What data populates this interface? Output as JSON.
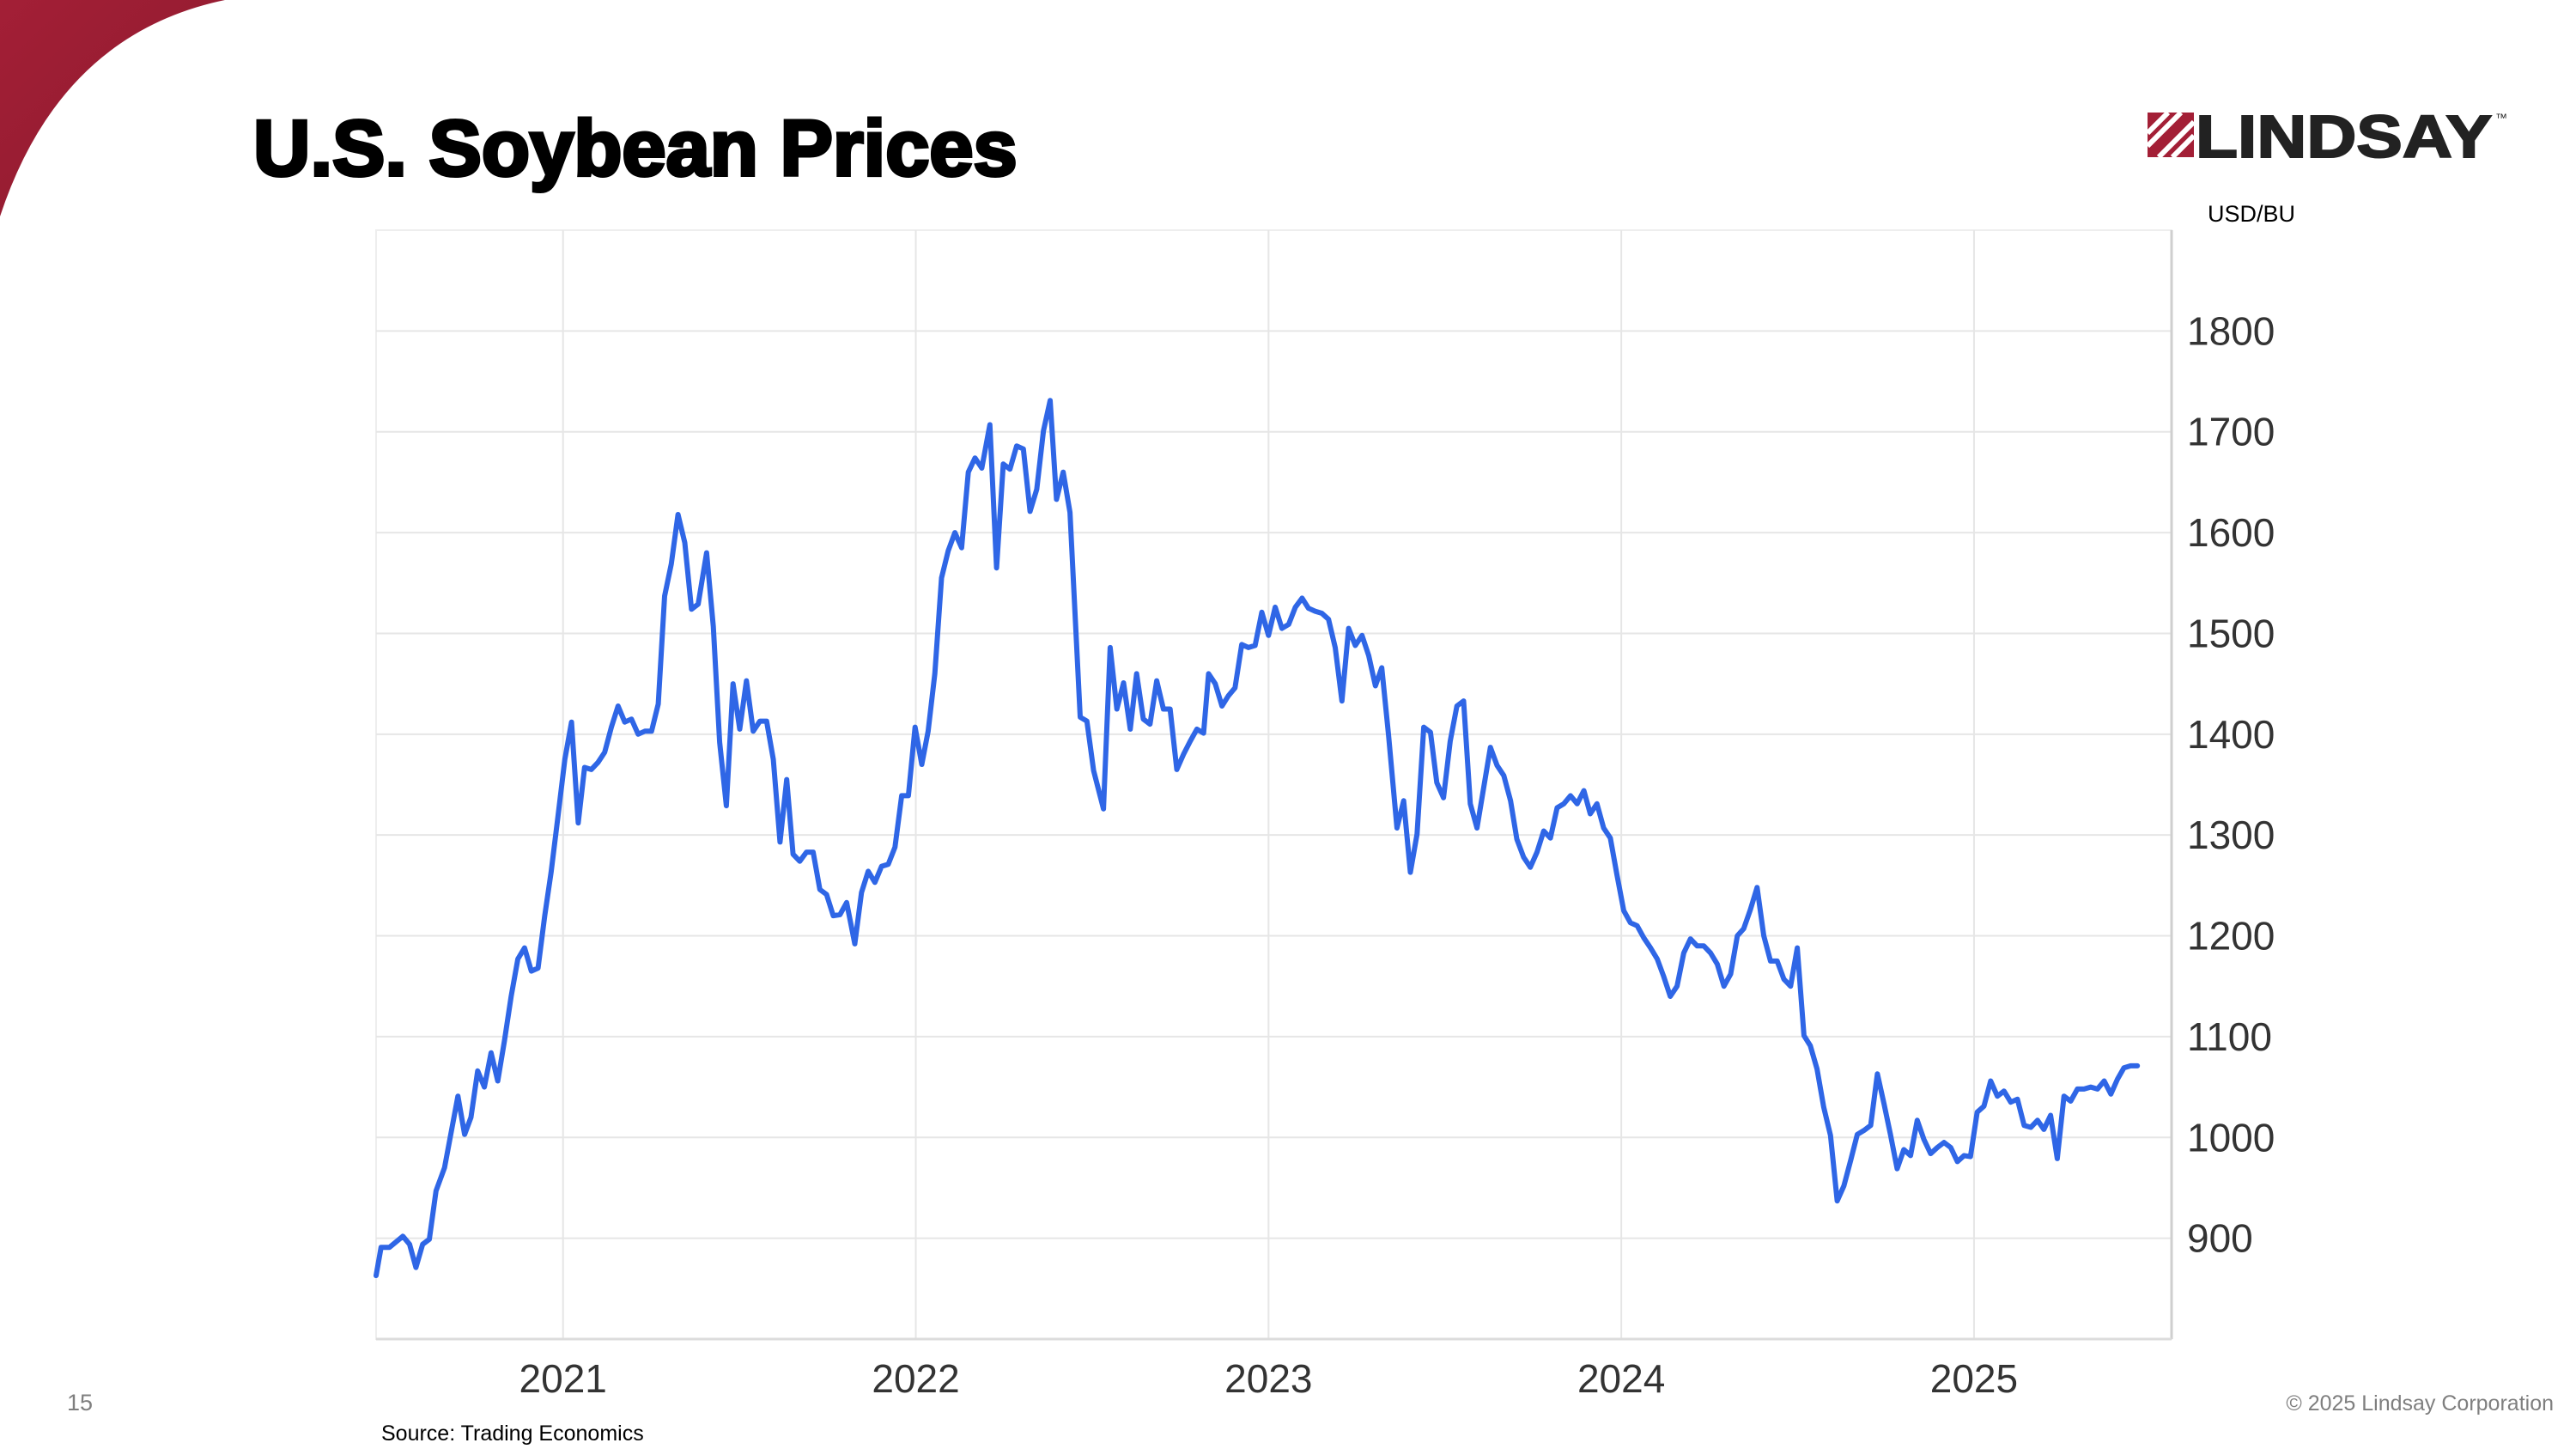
{
  "chart_data": {
    "type": "line",
    "title": "U.S. Soybean Prices",
    "y_label": "USD/BU",
    "source": "Source: Trading Economics",
    "color": "#2f66e6",
    "xlim": [
      2020.47,
      2025.56
    ],
    "xticks": [
      2021,
      2022,
      2023,
      2024,
      2025
    ],
    "ylim": [
      800,
      1900
    ],
    "yticks": [
      900,
      1000,
      1100,
      1200,
      1300,
      1400,
      1500,
      1600,
      1700,
      1800
    ],
    "grid": true,
    "x": [
      2020.47,
      2020.484,
      2020.508,
      2020.546,
      2020.565,
      2020.583,
      2020.602,
      2020.621,
      2020.64,
      2020.664,
      2020.702,
      2020.721,
      2020.739,
      2020.758,
      2020.777,
      2020.796,
      2020.815,
      2020.834,
      2020.853,
      2020.872,
      2020.891,
      2020.91,
      2020.929,
      2020.948,
      2020.966,
      2020.985,
      2021.005,
      2021.024,
      2021.043,
      2021.061,
      2021.08,
      2021.099,
      2021.118,
      2021.137,
      2021.156,
      2021.175,
      2021.194,
      2021.213,
      2021.232,
      2021.251,
      2021.27,
      2021.288,
      2021.307,
      2021.326,
      2021.345,
      2021.364,
      2021.383,
      2021.407,
      2021.426,
      2021.444,
      2021.463,
      2021.482,
      2021.501,
      2021.52,
      2021.539,
      2021.558,
      2021.577,
      2021.596,
      2021.615,
      2021.634,
      2021.652,
      2021.671,
      2021.69,
      2021.709,
      2021.728,
      2021.747,
      2021.766,
      2021.785,
      2021.804,
      2021.827,
      2021.846,
      2021.865,
      2021.884,
      2021.903,
      2021.922,
      2021.941,
      2021.96,
      2021.979,
      2021.998,
      2022.017,
      2022.035,
      2022.054,
      2022.073,
      2022.092,
      2022.111,
      2022.13,
      2022.149,
      2022.168,
      2022.187,
      2022.21,
      2022.229,
      2022.248,
      2022.267,
      2022.286,
      2022.305,
      2022.324,
      2022.343,
      2022.362,
      2022.381,
      2022.399,
      2022.418,
      2022.437,
      2022.466,
      2022.485,
      2022.504,
      2022.532,
      2022.551,
      2022.57,
      2022.589,
      2022.608,
      2022.626,
      2022.645,
      2022.664,
      2022.683,
      2022.702,
      2022.721,
      2022.74,
      2022.759,
      2022.778,
      2022.797,
      2022.816,
      2022.83,
      2022.849,
      2022.868,
      2022.886,
      2022.905,
      2022.924,
      2022.943,
      2022.962,
      2022.981,
      2023.0,
      2023.019,
      2023.038,
      2023.057,
      2023.076,
      2023.095,
      2023.113,
      2023.132,
      2023.151,
      2023.17,
      2023.189,
      2023.208,
      2023.227,
      2023.246,
      2023.265,
      2023.284,
      2023.303,
      2023.321,
      2023.34,
      2023.364,
      2023.383,
      2023.402,
      2023.421,
      2023.44,
      2023.459,
      2023.477,
      2023.496,
      2023.515,
      2023.534,
      2023.553,
      2023.572,
      2023.591,
      2023.61,
      2023.629,
      2023.648,
      2023.667,
      2023.686,
      2023.704,
      2023.723,
      2023.742,
      2023.761,
      2023.78,
      2023.799,
      2023.818,
      2023.837,
      2023.856,
      2023.875,
      2023.894,
      2023.912,
      2023.931,
      2023.95,
      2023.969,
      2023.988,
      2024.007,
      2024.026,
      2024.045,
      2024.064,
      2024.083,
      2024.102,
      2024.12,
      2024.139,
      2024.158,
      2024.177,
      2024.196,
      2024.215,
      2024.234,
      2024.253,
      2024.272,
      2024.291,
      2024.31,
      2024.329,
      2024.347,
      2024.366,
      2024.385,
      2024.404,
      2024.423,
      2024.442,
      2024.461,
      2024.48,
      2024.499,
      2024.518,
      2024.536,
      2024.555,
      2024.574,
      2024.593,
      2024.612,
      2024.631,
      2024.65,
      2024.669,
      2024.688,
      2024.707,
      2024.726,
      2024.745,
      2024.763,
      2024.782,
      2024.801,
      2024.82,
      2024.839,
      2024.858,
      2024.877,
      2024.896,
      2024.915,
      2024.934,
      2024.953,
      2024.972,
      2024.99,
      2025.009,
      2025.028,
      2025.047,
      2025.066,
      2025.085,
      2025.104,
      2025.123,
      2025.142,
      2025.161,
      2025.18,
      2025.198,
      2025.217,
      2025.236,
      2025.255,
      2025.274,
      2025.293,
      2025.312,
      2025.331,
      2025.35,
      2025.369,
      2025.388,
      2025.407,
      2025.425,
      2025.444,
      2025.463
    ],
    "values": [
      863,
      891,
      891,
      902,
      894,
      871,
      894,
      899,
      947,
      970,
      1041,
      1003,
      1020,
      1066,
      1050,
      1084,
      1056,
      1096,
      1140,
      1177,
      1188,
      1165,
      1168,
      1220,
      1263,
      1317,
      1375,
      1412,
      1312,
      1367,
      1365,
      1372,
      1382,
      1407,
      1428,
      1412,
      1415,
      1400,
      1403,
      1403,
      1430,
      1537,
      1569,
      1618,
      1590,
      1524,
      1529,
      1580,
      1507,
      1392,
      1329,
      1450,
      1405,
      1453,
      1403,
      1413,
      1413,
      1375,
      1293,
      1355,
      1281,
      1274,
      1283,
      1283,
      1246,
      1241,
      1220,
      1221,
      1233,
      1192,
      1243,
      1264,
      1253,
      1269,
      1271,
      1288,
      1339,
      1339,
      1407,
      1370,
      1403,
      1460,
      1555,
      1582,
      1600,
      1585,
      1660,
      1674,
      1664,
      1707,
      1565,
      1668,
      1663,
      1686,
      1683,
      1621,
      1643,
      1701,
      1731,
      1633,
      1660,
      1620,
      1417,
      1413,
      1364,
      1326,
      1486,
      1425,
      1451,
      1405,
      1460,
      1415,
      1410,
      1453,
      1425,
      1425,
      1365,
      1380,
      1393,
      1405,
      1401,
      1460,
      1450,
      1428,
      1438,
      1446,
      1489,
      1486,
      1488,
      1521,
      1498,
      1526,
      1505,
      1509,
      1526,
      1535,
      1525,
      1522,
      1520,
      1514,
      1486,
      1433,
      1505,
      1488,
      1498,
      1478,
      1448,
      1466,
      1400,
      1307,
      1334,
      1263,
      1301,
      1407,
      1402,
      1352,
      1337,
      1393,
      1428,
      1433,
      1331,
      1307,
      1347,
      1387,
      1369,
      1359,
      1334,
      1296,
      1278,
      1268,
      1283,
      1304,
      1297,
      1327,
      1331,
      1339,
      1331,
      1344,
      1321,
      1331,
      1307,
      1297,
      1260,
      1225,
      1213,
      1210,
      1198,
      1188,
      1177,
      1160,
      1140,
      1150,
      1183,
      1197,
      1190,
      1190,
      1183,
      1172,
      1150,
      1162,
      1200,
      1207,
      1226,
      1248,
      1200,
      1175,
      1175,
      1157,
      1150,
      1188,
      1101,
      1091,
      1068,
      1030,
      1002,
      937,
      952,
      977,
      1003,
      1007,
      1012,
      1063,
      1033,
      1003,
      969,
      988,
      982,
      1017,
      998,
      984,
      990,
      995,
      990,
      976,
      982,
      981,
      1025,
      1031,
      1056,
      1041,
      1046,
      1035,
      1038,
      1012,
      1010,
      1017,
      1008,
      1022,
      979,
      1041,
      1036,
      1048,
      1048,
      1050,
      1048,
      1056,
      1043,
      1058,
      1069,
      1071,
      1071
    ]
  },
  "slide": {
    "number": "15",
    "copyright": "© 2025 Lindsay Corporation",
    "logo": "LINDSAY",
    "logo_mark": "™"
  }
}
